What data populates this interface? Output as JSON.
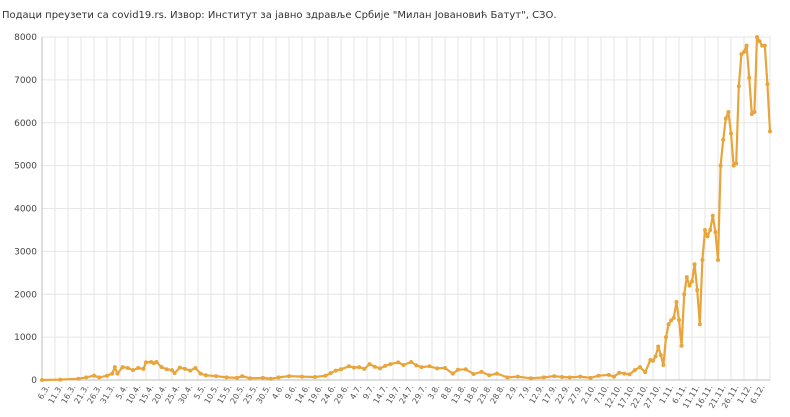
{
  "source_text": "Подаци преузети са covid19.rs. Извор: Институт за јавно здравље Србије \"Милан Јовановић Батут\", СЗО.",
  "colors": {
    "line": "#e8a53c",
    "grid": "#e6e6e6",
    "axis": "#bdbdbd"
  },
  "chart_data": {
    "type": "line",
    "title": "",
    "xlabel": "",
    "ylabel": "",
    "ylim": [
      0,
      8000
    ],
    "yticks": [
      0,
      1000,
      2000,
      3000,
      4000,
      5000,
      6000,
      7000,
      8000
    ],
    "grid": true,
    "start_date": "2020-03-06",
    "end_date": "2020-12-06",
    "xtick_labels": [
      "6.3.",
      "11.3.",
      "16.3.",
      "21.3.",
      "26.3.",
      "31.3.",
      "5.4.",
      "10.4.",
      "15.4.",
      "20.4.",
      "25.4.",
      "30.4.",
      "5.5.",
      "10.5.",
      "15.5.",
      "20.5.",
      "25.5.",
      "30.5.",
      "4.6.",
      "9.6.",
      "14.6.",
      "19.6.",
      "24.6.",
      "29.6.",
      "4.7.",
      "9.7.",
      "14.7.",
      "19.7.",
      "24.7.",
      "29.7.",
      "3.8.",
      "8.8.",
      "13.8.",
      "18.8.",
      "23.8.",
      "28.8.",
      "2.9.",
      "7.9.",
      "12.9.",
      "17.9.",
      "22.9.",
      "27.9.",
      "2.10.",
      "7.10.",
      "12.10.",
      "17.10.",
      "22.10.",
      "27.10.",
      "1.11.",
      "6.11.",
      "11.11.",
      "16.11.",
      "21.11.",
      "26.11.",
      "1.12.",
      "6.12."
    ],
    "series": [
      {
        "points": [
          [
            "2020-03-06",
            1
          ],
          [
            "2020-03-13",
            10
          ],
          [
            "2020-03-20",
            30
          ],
          [
            "2020-03-23",
            60
          ],
          [
            "2020-03-26",
            103
          ],
          [
            "2020-03-28",
            60
          ],
          [
            "2020-03-31",
            100
          ],
          [
            "2020-04-02",
            150
          ],
          [
            "2020-04-03",
            300
          ],
          [
            "2020-04-04",
            150
          ],
          [
            "2020-04-06",
            300
          ],
          [
            "2020-04-08",
            280
          ],
          [
            "2020-04-10",
            230
          ],
          [
            "2020-04-12",
            280
          ],
          [
            "2020-04-14",
            260
          ],
          [
            "2020-04-15",
            410
          ],
          [
            "2020-04-17",
            420
          ],
          [
            "2020-04-18",
            390
          ],
          [
            "2020-04-19",
            420
          ],
          [
            "2020-04-21",
            300
          ],
          [
            "2020-04-23",
            250
          ],
          [
            "2020-04-25",
            230
          ],
          [
            "2020-04-26",
            160
          ],
          [
            "2020-04-28",
            290
          ],
          [
            "2020-04-30",
            260
          ],
          [
            "2020-05-02",
            220
          ],
          [
            "2020-05-04",
            280
          ],
          [
            "2020-05-06",
            150
          ],
          [
            "2020-05-08",
            110
          ],
          [
            "2020-05-12",
            90
          ],
          [
            "2020-05-16",
            60
          ],
          [
            "2020-05-20",
            50
          ],
          [
            "2020-05-22",
            90
          ],
          [
            "2020-05-25",
            40
          ],
          [
            "2020-05-30",
            50
          ],
          [
            "2020-06-02",
            30
          ],
          [
            "2020-06-05",
            60
          ],
          [
            "2020-06-09",
            90
          ],
          [
            "2020-06-14",
            80
          ],
          [
            "2020-06-19",
            70
          ],
          [
            "2020-06-23",
            100
          ],
          [
            "2020-06-25",
            160
          ],
          [
            "2020-06-27",
            220
          ],
          [
            "2020-06-29",
            250
          ],
          [
            "2020-07-02",
            320
          ],
          [
            "2020-07-04",
            290
          ],
          [
            "2020-07-06",
            300
          ],
          [
            "2020-07-08",
            260
          ],
          [
            "2020-07-10",
            370
          ],
          [
            "2020-07-12",
            310
          ],
          [
            "2020-07-14",
            270
          ],
          [
            "2020-07-16",
            330
          ],
          [
            "2020-07-18",
            370
          ],
          [
            "2020-07-21",
            410
          ],
          [
            "2020-07-23",
            350
          ],
          [
            "2020-07-26",
            420
          ],
          [
            "2020-07-28",
            340
          ],
          [
            "2020-07-30",
            300
          ],
          [
            "2020-08-02",
            320
          ],
          [
            "2020-08-05",
            270
          ],
          [
            "2020-08-08",
            280
          ],
          [
            "2020-08-11",
            150
          ],
          [
            "2020-08-13",
            240
          ],
          [
            "2020-08-16",
            250
          ],
          [
            "2020-08-19",
            140
          ],
          [
            "2020-08-22",
            190
          ],
          [
            "2020-08-25",
            110
          ],
          [
            "2020-08-28",
            150
          ],
          [
            "2020-09-01",
            60
          ],
          [
            "2020-09-05",
            80
          ],
          [
            "2020-09-10",
            40
          ],
          [
            "2020-09-15",
            60
          ],
          [
            "2020-09-19",
            90
          ],
          [
            "2020-09-22",
            70
          ],
          [
            "2020-09-25",
            60
          ],
          [
            "2020-09-29",
            80
          ],
          [
            "2020-10-03",
            50
          ],
          [
            "2020-10-06",
            100
          ],
          [
            "2020-10-10",
            120
          ],
          [
            "2020-10-12",
            80
          ],
          [
            "2020-10-14",
            170
          ],
          [
            "2020-10-16",
            150
          ],
          [
            "2020-10-18",
            130
          ],
          [
            "2020-10-20",
            230
          ],
          [
            "2020-10-22",
            300
          ],
          [
            "2020-10-24",
            180
          ],
          [
            "2020-10-26",
            470
          ],
          [
            "2020-10-27",
            450
          ],
          [
            "2020-10-28",
            550
          ],
          [
            "2020-10-29",
            780
          ],
          [
            "2020-10-30",
            580
          ],
          [
            "2020-10-31",
            350
          ],
          [
            "2020-11-01",
            1000
          ],
          [
            "2020-11-02",
            1300
          ],
          [
            "2020-11-03",
            1390
          ],
          [
            "2020-11-04",
            1450
          ],
          [
            "2020-11-05",
            1820
          ],
          [
            "2020-11-06",
            1400
          ],
          [
            "2020-11-07",
            800
          ],
          [
            "2020-11-08",
            2000
          ],
          [
            "2020-11-09",
            2400
          ],
          [
            "2020-11-10",
            2200
          ],
          [
            "2020-11-11",
            2300
          ],
          [
            "2020-11-12",
            2700
          ],
          [
            "2020-11-13",
            2100
          ],
          [
            "2020-11-14",
            1300
          ],
          [
            "2020-11-15",
            2800
          ],
          [
            "2020-11-16",
            3500
          ],
          [
            "2020-11-17",
            3350
          ],
          [
            "2020-11-18",
            3500
          ],
          [
            "2020-11-19",
            3830
          ],
          [
            "2020-11-20",
            3450
          ],
          [
            "2020-11-21",
            2800
          ],
          [
            "2020-11-22",
            5000
          ],
          [
            "2020-11-23",
            5600
          ],
          [
            "2020-11-24",
            6100
          ],
          [
            "2020-11-25",
            6250
          ],
          [
            "2020-11-26",
            5750
          ],
          [
            "2020-11-27",
            5000
          ],
          [
            "2020-11-28",
            5050
          ],
          [
            "2020-11-29",
            6850
          ],
          [
            "2020-11-30",
            7600
          ],
          [
            "2020-12-01",
            7650
          ],
          [
            "2020-12-02",
            7800
          ],
          [
            "2020-12-03",
            7050
          ],
          [
            "2020-12-04",
            6200
          ],
          [
            "2020-12-05",
            6250
          ],
          [
            "2020-12-06",
            8000
          ],
          [
            "2020-12-07",
            7900
          ],
          [
            "2020-12-08",
            7800
          ],
          [
            "2020-12-09",
            7800
          ],
          [
            "2020-12-10",
            6900
          ],
          [
            "2020-12-11",
            5800
          ]
        ]
      }
    ]
  }
}
